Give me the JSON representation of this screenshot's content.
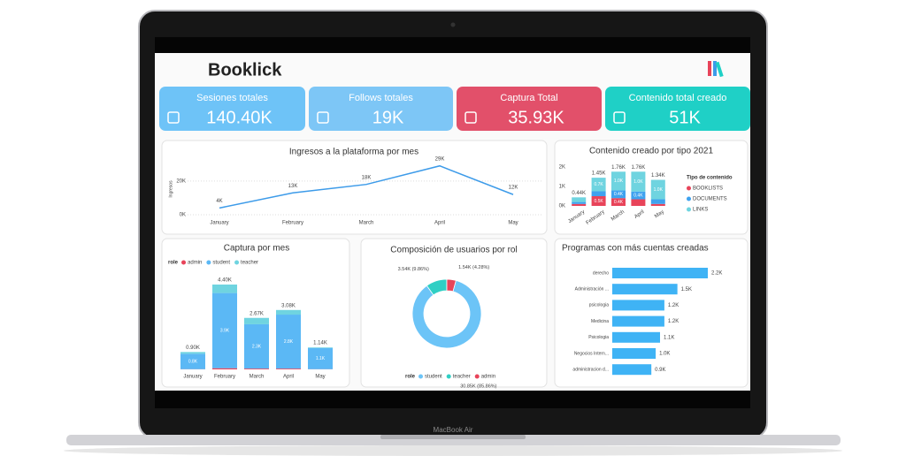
{
  "brand": "Booklick",
  "device_label": "MacBook Air",
  "kpis": [
    {
      "label": "Sesiones totales",
      "value": "140.40K",
      "color": "#6ec3f7"
    },
    {
      "label": "Follows totales",
      "value": "19K",
      "color": "#7dc6f6"
    },
    {
      "label": "Captura Total",
      "value": "35.93K",
      "color": "#e2506a"
    },
    {
      "label": "Contenido total creado",
      "value": "51K",
      "color": "#1fd0c6"
    }
  ],
  "chart_data": [
    {
      "type": "line",
      "title": "Ingresos a la plataforma por mes",
      "y_label": "Ingresos",
      "categories": [
        "January",
        "February",
        "March",
        "April",
        "May"
      ],
      "values": [
        4000,
        13000,
        18000,
        29000,
        12000
      ],
      "value_labels": [
        "4K",
        "13K",
        "18K",
        "29K",
        "12K"
      ],
      "color": "#3d9be9",
      "ylim": [
        0,
        32000
      ],
      "yticks": [
        {
          "value": 0,
          "label": "0K"
        },
        {
          "value": 20000,
          "label": "20K"
        }
      ],
      "grid": true
    },
    {
      "type": "stacked_bar",
      "title": "Contenido creado por tipo 2021",
      "legend_title": "Tipo de contenido",
      "categories": [
        "January",
        "February",
        "March",
        "April",
        "May"
      ],
      "series": [
        {
          "name": "BOOKLISTS",
          "color": "#e8445a",
          "values": [
            100,
            500,
            400,
            340,
            100
          ],
          "value_labels": [
            null,
            "0.5K",
            "0.4K",
            null,
            null
          ]
        },
        {
          "name": "DOCUMENTS",
          "color": "#3fa2ef",
          "values": [
            100,
            250,
            400,
            400,
            240
          ],
          "value_labels": [
            null,
            null,
            "0.4K",
            "0.4K",
            null
          ]
        },
        {
          "name": "LINKS",
          "color": "#6fd4e0",
          "values": [
            240,
            700,
            960,
            1020,
            1000
          ],
          "value_labels": [
            null,
            "0.7K",
            "1.0K",
            "1.0K",
            "1.0K"
          ]
        }
      ],
      "total_labels": [
        "0.44K",
        "1.45K",
        "1.76K",
        "1.76K",
        "1.34K"
      ],
      "ylim": [
        0,
        2200
      ],
      "yticks": [
        {
          "value": 0,
          "label": "0K"
        },
        {
          "value": 1000,
          "label": "1K"
        },
        {
          "value": 2000,
          "label": "2K"
        }
      ]
    },
    {
      "type": "stacked_bar",
      "title": "Captura por mes",
      "legend_title": "role",
      "categories": [
        "January",
        "February",
        "March",
        "April",
        "May"
      ],
      "series": [
        {
          "name": "admin",
          "color": "#e8445a",
          "values": [
            10,
            60,
            40,
            40,
            10
          ],
          "value_labels": [
            null,
            null,
            null,
            null,
            null
          ]
        },
        {
          "name": "student",
          "color": "#5bb8f5",
          "values": [
            800,
            3900,
            2300,
            2800,
            1100
          ],
          "value_labels": [
            "0.8K",
            "3.9K",
            "2.3K",
            "2.8K",
            "1.1K"
          ]
        },
        {
          "name": "teacher",
          "color": "#6fd4e0",
          "values": [
            90,
            440,
            330,
            240,
            30
          ],
          "value_labels": [
            null,
            null,
            null,
            null,
            null
          ]
        }
      ],
      "total_labels": [
        "0.90K",
        "4.40K",
        "2.67K",
        "3.08K",
        "1.14K"
      ]
    },
    {
      "type": "donut",
      "title": "Composición de usuarios por rol",
      "legend_title": "role",
      "categories": [
        "student",
        "teacher",
        "admin"
      ],
      "values": [
        30850,
        3540,
        1540
      ],
      "value_labels": [
        "30.85K (85.86%)",
        "3.54K (9.86%)",
        "1.54K (4.28%)"
      ],
      "colors": [
        "#6cc4f7",
        "#2fcfc4",
        "#e8445a"
      ]
    },
    {
      "type": "hbar",
      "title": "Programas con más cuentas creadas",
      "categories": [
        "derecho",
        "Administración ...",
        "psicologia",
        "Medicina",
        "Psicologia",
        "Negocios Intern...",
        "administracion d..."
      ],
      "values": [
        2200,
        1500,
        1200,
        1200,
        1100,
        1000,
        900
      ],
      "value_labels": [
        "2.2K",
        "1.5K",
        "1.2K",
        "1.2K",
        "1.1K",
        "1.0K",
        "0.9K"
      ],
      "color": "#3fb3f5"
    }
  ]
}
